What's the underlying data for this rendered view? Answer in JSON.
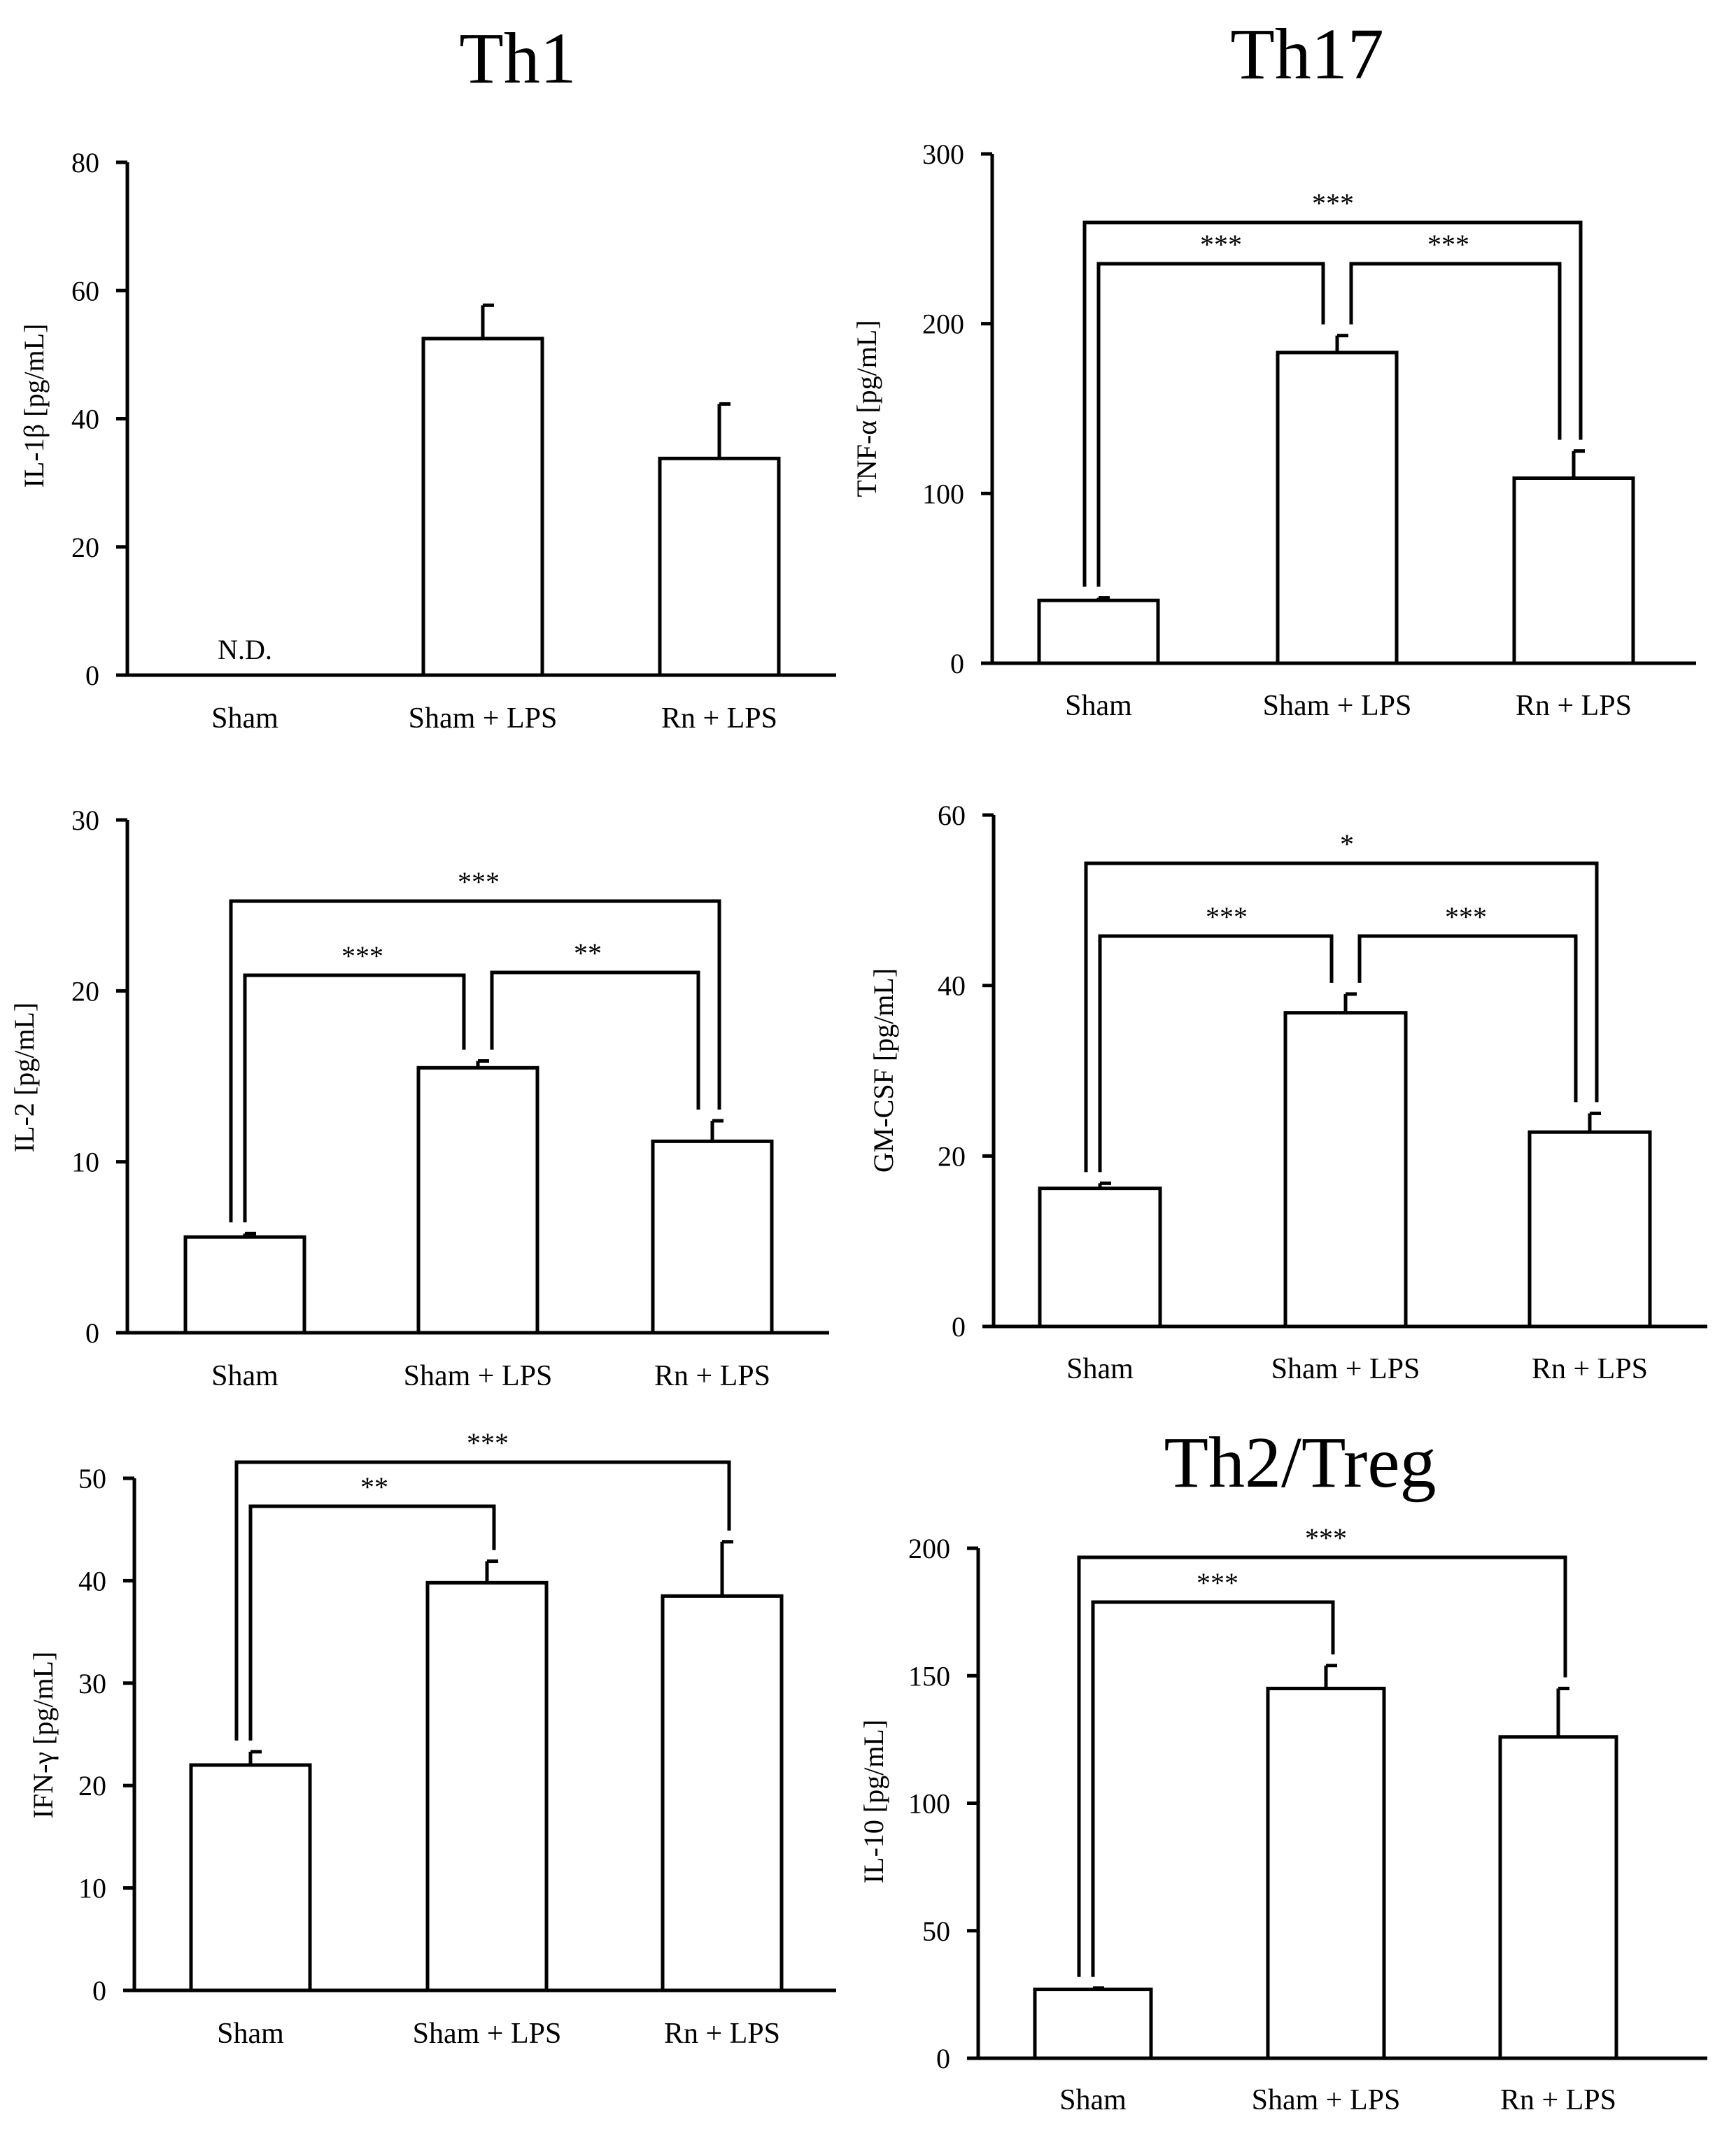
{
  "headings": {
    "th1": "Th1",
    "th17": "Th17",
    "th2treg": "Th2/Treg"
  },
  "chart_data": [
    {
      "id": "il1b",
      "type": "bar",
      "group": "Th1",
      "ylabel": "IL-1β [pg/mL]",
      "ylim": [
        0,
        80
      ],
      "yticks": [
        0,
        20,
        40,
        60,
        80
      ],
      "categories": [
        "Sham",
        "Sham + LPS",
        "Rn + LPS"
      ],
      "values": [
        0,
        52.5,
        33.8
      ],
      "errors": [
        0,
        5.2,
        8.5
      ],
      "annotations": [
        {
          "category": "Sham",
          "text": "N.D."
        }
      ],
      "comparisons": []
    },
    {
      "id": "tnfa",
      "type": "bar",
      "group": "Th17",
      "ylabel": "TNF-α [pg/mL]",
      "ylim": [
        0,
        300
      ],
      "yticks": [
        0,
        100,
        200,
        300
      ],
      "categories": [
        "Sham",
        "Sham + LPS",
        "Rn + LPS"
      ],
      "values": [
        37,
        183,
        109
      ],
      "errors": [
        1.5,
        10,
        16
      ],
      "comparisons": [
        {
          "from": 0,
          "to": 1,
          "label": "***"
        },
        {
          "from": 1,
          "to": 2,
          "label": "***"
        },
        {
          "from": 0,
          "to": 2,
          "label": "***"
        }
      ]
    },
    {
      "id": "il2",
      "type": "bar",
      "group": "Th1",
      "ylabel": "IL-2 [pg/mL]",
      "ylim": [
        0,
        30
      ],
      "yticks": [
        0,
        10,
        20,
        30
      ],
      "categories": [
        "Sham",
        "Sham + LPS",
        "Rn + LPS"
      ],
      "values": [
        5.6,
        15.5,
        11.2
      ],
      "errors": [
        0.2,
        0.4,
        1.2
      ],
      "comparisons": [
        {
          "from": 0,
          "to": 1,
          "label": "***"
        },
        {
          "from": 1,
          "to": 2,
          "label": "**"
        },
        {
          "from": 0,
          "to": 2,
          "label": "***"
        }
      ]
    },
    {
      "id": "gmcsf",
      "type": "bar",
      "group": "Th17",
      "ylabel": "GM-CSF [pg/mL]",
      "ylim": [
        0,
        60
      ],
      "yticks": [
        0,
        20,
        40,
        60
      ],
      "categories": [
        "Sham",
        "Sham + LPS",
        "Rn + LPS"
      ],
      "values": [
        16.2,
        36.8,
        22.8
      ],
      "errors": [
        0.6,
        2.2,
        2.2
      ],
      "comparisons": [
        {
          "from": 0,
          "to": 1,
          "label": "***"
        },
        {
          "from": 1,
          "to": 2,
          "label": "***"
        },
        {
          "from": 0,
          "to": 2,
          "label": "*"
        }
      ]
    },
    {
      "id": "ifng",
      "type": "bar",
      "group": "Th1",
      "ylabel": "IFN-γ [pg/mL]",
      "ylim": [
        0,
        50
      ],
      "yticks": [
        0,
        10,
        20,
        30,
        40,
        50
      ],
      "categories": [
        "Sham",
        "Sham + LPS",
        "Rn + LPS"
      ],
      "values": [
        22,
        39.8,
        38.5
      ],
      "errors": [
        1.3,
        2.1,
        5.3
      ],
      "comparisons": [
        {
          "from": 0,
          "to": 1,
          "label": "**"
        },
        {
          "from": 0,
          "to": 2,
          "label": "***"
        }
      ]
    },
    {
      "id": "il10",
      "type": "bar",
      "group": "Th2/Treg",
      "ylabel": "IL-10 [pg/mL]",
      "ylim": [
        0,
        200
      ],
      "yticks": [
        0,
        50,
        100,
        150,
        200
      ],
      "categories": [
        "Sham",
        "Sham + LPS",
        "Rn + LPS"
      ],
      "values": [
        27,
        145,
        126
      ],
      "errors": [
        0.5,
        9,
        19
      ],
      "comparisons": [
        {
          "from": 0,
          "to": 1,
          "label": "***"
        },
        {
          "from": 0,
          "to": 2,
          "label": "***"
        }
      ]
    }
  ]
}
